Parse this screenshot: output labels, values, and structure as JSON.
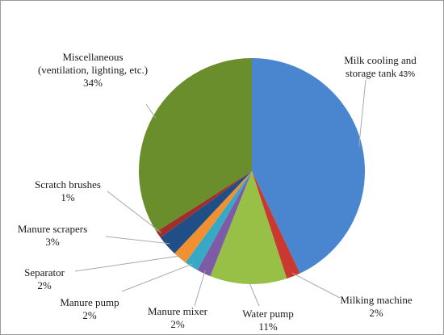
{
  "chart_data": {
    "type": "pie",
    "slices": [
      {
        "label_lines": [
          "Milk cooling and",
          "storage tank"
        ],
        "pct_label": "43%",
        "value": 43,
        "color": "#4a86d0"
      },
      {
        "label_lines": [
          "Milking machine"
        ],
        "pct_label": "2%",
        "value": 2,
        "color": "#c9392f"
      },
      {
        "label_lines": [
          "Water pump"
        ],
        "pct_label": "11%",
        "value": 11,
        "color": "#98c047"
      },
      {
        "label_lines": [
          "Manure mixer"
        ],
        "pct_label": "2%",
        "value": 2,
        "color": "#7d5ba6"
      },
      {
        "label_lines": [
          "Manure pump"
        ],
        "pct_label": "2%",
        "value": 2,
        "color": "#37a8c5"
      },
      {
        "label_lines": [
          "Separator"
        ],
        "pct_label": "2%",
        "value": 2,
        "color": "#f29031"
      },
      {
        "label_lines": [
          "Manure scrapers"
        ],
        "pct_label": "3%",
        "value": 3,
        "color": "#1f4f86"
      },
      {
        "label_lines": [
          "Scratch brushes"
        ],
        "pct_label": "1%",
        "value": 1,
        "color": "#a02f2b"
      },
      {
        "label_lines": [
          "Miscellaneous",
          "(ventilation, lighting, etc.)"
        ],
        "pct_label": "34%",
        "value": 34,
        "color": "#6b8e2c"
      }
    ],
    "legend": "none (callout labels)"
  }
}
